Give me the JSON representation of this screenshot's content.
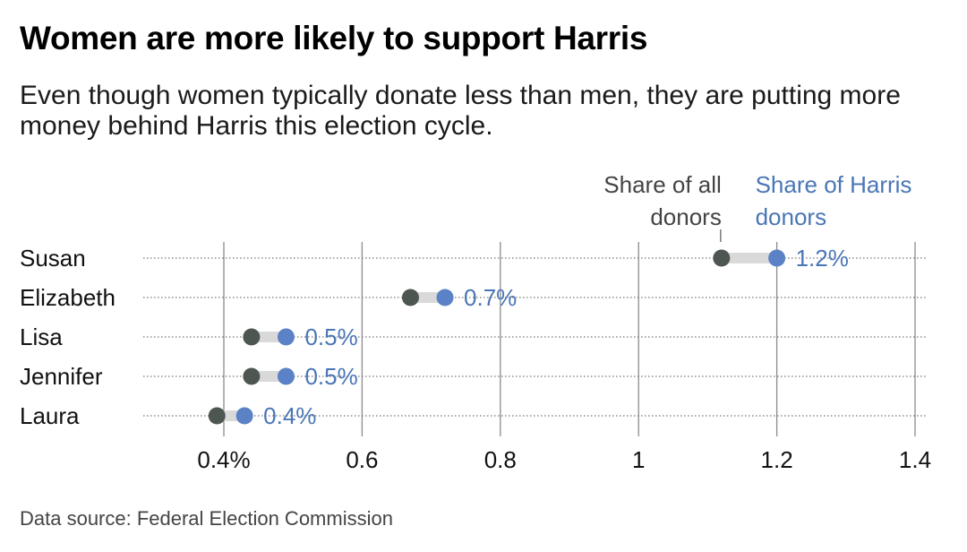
{
  "title": "Women are more likely to support Harris",
  "subtitle": "Even though women typically donate less than men, they are putting more money behind Harris this election cycle.",
  "source": "Data source: Federal Election Commission",
  "colors": {
    "all_donors": "#4d5650",
    "harris_donors": "#5b82c6",
    "harris_text": "#4a76b5",
    "connector": "#d9d9d9"
  },
  "chart_data": {
    "type": "dot",
    "categories": [
      "Susan",
      "Elizabeth",
      "Lisa",
      "Jennifer",
      "Laura"
    ],
    "series": [
      {
        "name": "Share of all donors",
        "values": [
          1.12,
          0.67,
          0.44,
          0.44,
          0.39
        ]
      },
      {
        "name": "Share of Harris donors",
        "values": [
          1.2,
          0.72,
          0.49,
          0.49,
          0.43
        ]
      }
    ],
    "data_labels": [
      "1.2%",
      "0.7%",
      "0.5%",
      "0.5%",
      "0.4%"
    ],
    "legend": {
      "all_donors": [
        "Share of all",
        "donors"
      ],
      "harris_donors": [
        "Share of Harris",
        "donors"
      ]
    },
    "xticks": [
      0.4,
      0.6,
      0.8,
      1,
      1.2,
      1.4
    ],
    "xtick_labels": [
      "0.4%",
      "0.6",
      "0.8",
      "1",
      "1.2",
      "1.4"
    ],
    "xlim": [
      0.4,
      1.4
    ],
    "grid": true
  }
}
